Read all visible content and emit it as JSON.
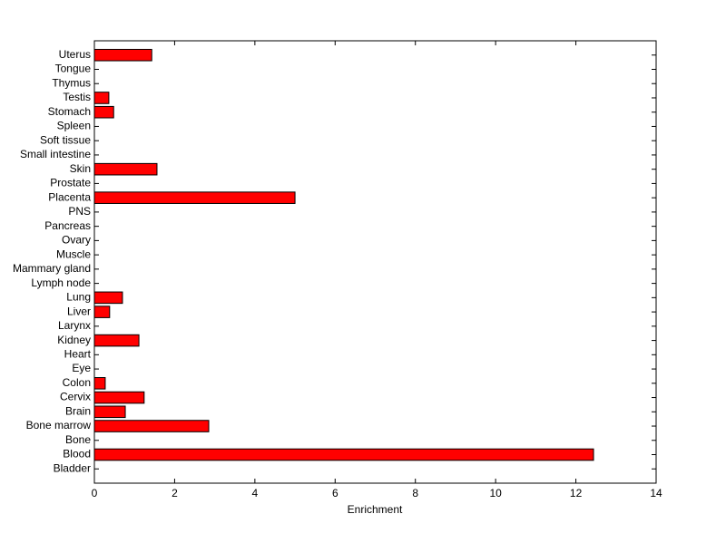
{
  "chart_data": {
    "type": "barh",
    "xlabel": "Enrichment",
    "categories": [
      "Bladder",
      "Blood",
      "Bone",
      "Bone marrow",
      "Brain",
      "Cervix",
      "Colon",
      "Eye",
      "Heart",
      "Kidney",
      "Larynx",
      "Liver",
      "Lung",
      "Lymph node",
      "Mammary gland",
      "Muscle",
      "Ovary",
      "Pancreas",
      "PNS",
      "Placenta",
      "Prostate",
      "Skin",
      "Small intestine",
      "Soft tissue",
      "Spleen",
      "Stomach",
      "Testis",
      "Thymus",
      "Tongue",
      "Uterus"
    ],
    "values": [
      0,
      12.44,
      0,
      2.85,
      0.77,
      1.24,
      0.27,
      0,
      0,
      1.11,
      0,
      0.38,
      0.7,
      0,
      0,
      0,
      0,
      0,
      0,
      5.0,
      0,
      1.56,
      0,
      0,
      0,
      0.48,
      0.36,
      0,
      0,
      1.43
    ],
    "color": "#ff0000",
    "xlim": [
      0,
      14
    ],
    "xticks": [
      0,
      2,
      4,
      6,
      8,
      10,
      12,
      14
    ]
  }
}
